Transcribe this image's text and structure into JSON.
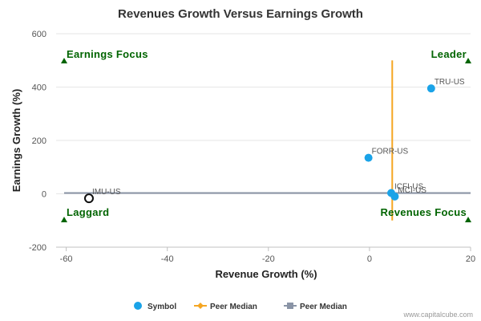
{
  "chart_data": {
    "type": "scatter",
    "title": "Revenues Growth Versus Earnings Growth",
    "xlabel": "Revenue Growth (%)",
    "ylabel": "Earnings Growth (%)",
    "xlim": [
      -62,
      20
    ],
    "ylim": [
      -200,
      600
    ],
    "xticks": [
      -60,
      -40,
      -20,
      0,
      20
    ],
    "yticks": [
      -200,
      0,
      200,
      400,
      600
    ],
    "grid": "horizontal",
    "quadrants": {
      "top_left": "Earnings Focus",
      "top_right": "Leader",
      "bottom_left": "Laggard",
      "bottom_right": "Revenues Focus"
    },
    "points": [
      {
        "label": "TRU-US",
        "x": 12.2,
        "y": 395,
        "kind": "symbol"
      },
      {
        "label": "FORR-US",
        "x": -0.2,
        "y": 135,
        "kind": "symbol"
      },
      {
        "label": "ICFI-US",
        "x": 4.3,
        "y": 3,
        "kind": "symbol"
      },
      {
        "label": "MCI-US",
        "x": 5.0,
        "y": -10,
        "kind": "symbol"
      },
      {
        "label": "IMU-US",
        "x": -55.5,
        "y": -17,
        "kind": "focus"
      }
    ],
    "peer_median_x": 4.5,
    "peer_median_y": 3,
    "peer_median_x_range": [
      -100,
      500
    ],
    "legend": {
      "position": "bottom",
      "items": [
        {
          "name": "Symbol",
          "color": "#1aa3e8",
          "marker": "circle"
        },
        {
          "name": "Peer Median",
          "color": "#f5a623",
          "marker": "diamond-line"
        },
        {
          "name": "Peer Median",
          "color": "#8a94a6",
          "marker": "square-line"
        }
      ]
    }
  },
  "credit": "www.capitalcube.com",
  "colors": {
    "symbol": "#1aa3e8",
    "peer_median_vertical": "#f5a623",
    "peer_median_horizontal": "#8a94a6",
    "quadrant_text": "#006400",
    "gridline": "#e6e6e6"
  }
}
